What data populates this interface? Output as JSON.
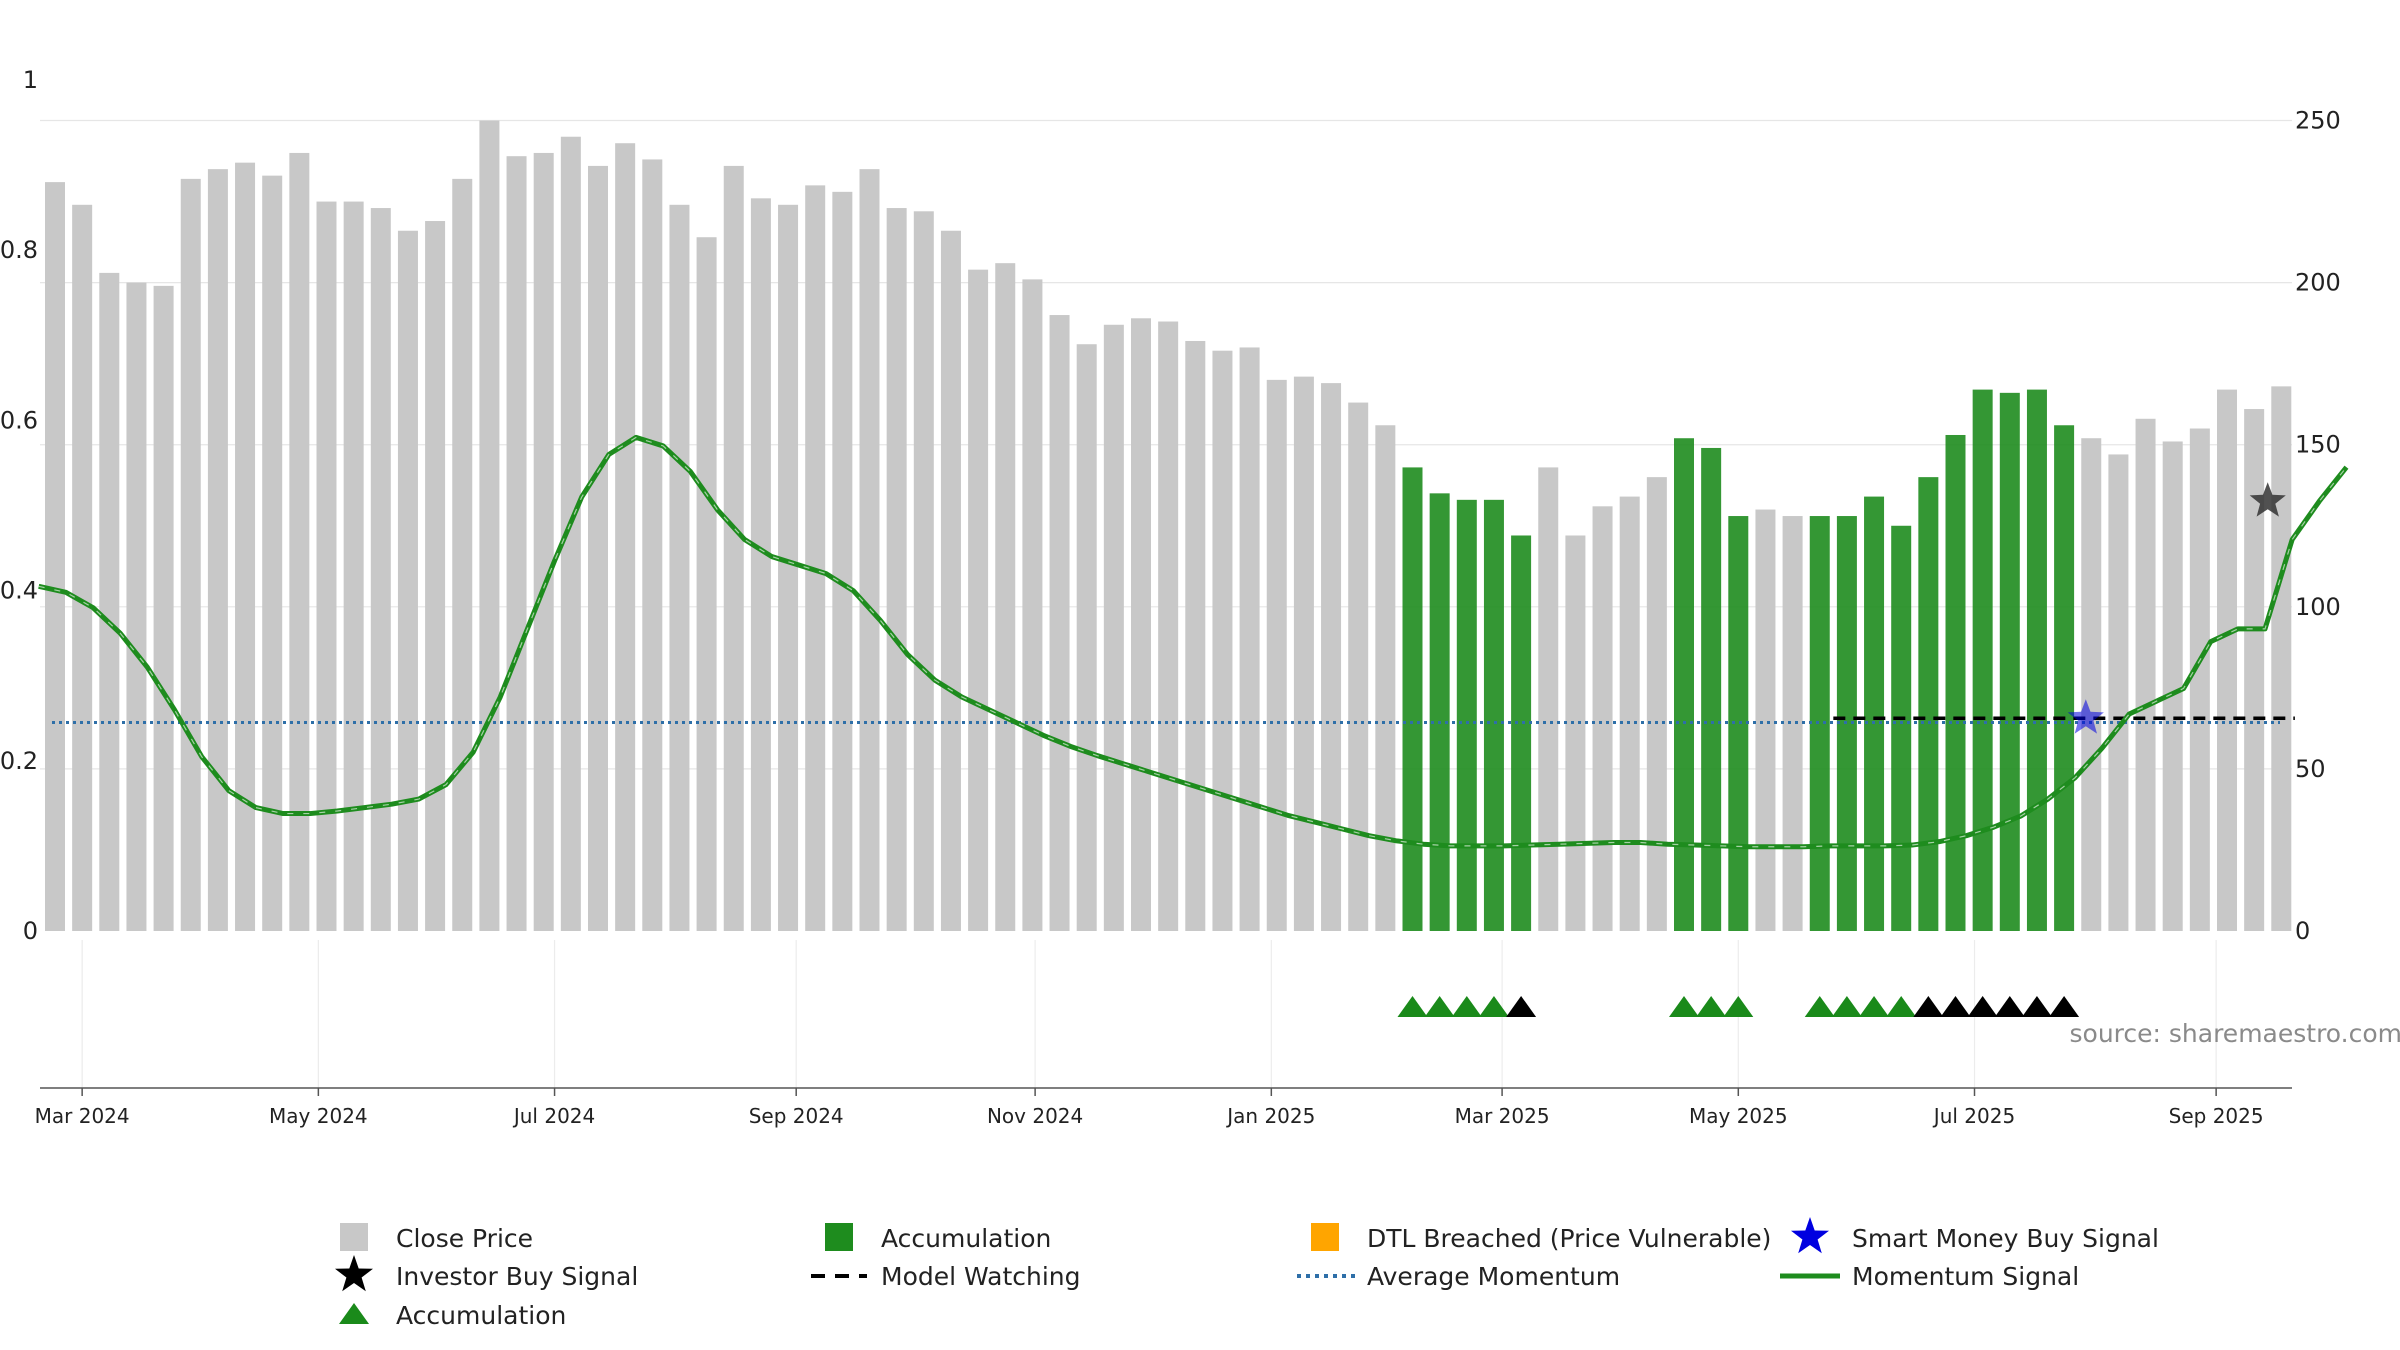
{
  "chart_data": {
    "type": "bar",
    "title": "",
    "source_label": "source: sharemaestro.com",
    "left_axis": {
      "ylim": [
        0,
        1
      ],
      "ticks": [
        0,
        0.2,
        0.4,
        0.6,
        0.8,
        1
      ],
      "tick_labels": [
        "0",
        "0.2",
        "0.4",
        "0.6",
        "0.8",
        "1"
      ]
    },
    "right_axis": {
      "ylim": [
        0,
        262.5
      ],
      "ticks": [
        0,
        50,
        100,
        150,
        200,
        250
      ],
      "tick_labels": [
        "0",
        "50",
        "100",
        "150",
        "200",
        "250"
      ]
    },
    "x_ticks": [
      {
        "label": "Mar 2024",
        "week": 1
      },
      {
        "label": "May 2024",
        "week": 9.7
      },
      {
        "label": "Jul 2024",
        "week": 18.4
      },
      {
        "label": "Sep 2024",
        "week": 27.3
      },
      {
        "label": "Nov 2024",
        "week": 36.1
      },
      {
        "label": "Jan 2025",
        "week": 44.8
      },
      {
        "label": "Mar 2025",
        "week": 53.3
      },
      {
        "label": "May 2025",
        "week": 62
      },
      {
        "label": "Jul 2025",
        "week": 70.7
      },
      {
        "label": "Sep 2025",
        "week": 79.6
      }
    ],
    "grid": true,
    "legend_position": "bottom",
    "colors": {
      "close": "#c8c8c8",
      "accum": "#1e8c1e",
      "dtl": "#ffa500",
      "smart": "#0000e0",
      "investor": "#000000",
      "triangle_green": "#1a8a1a",
      "triangle_black": "#000000",
      "avg": "#2e6fa8",
      "momentum": "#1e8c1e",
      "watch": "#000000"
    },
    "close_price": [
      231,
      224,
      203,
      200,
      199,
      232,
      235,
      237,
      233,
      240,
      225,
      225,
      223,
      216,
      219,
      232,
      250,
      239,
      240,
      245,
      236,
      243,
      238,
      224,
      214,
      236,
      226,
      224,
      230,
      228,
      235,
      223,
      222,
      216,
      204,
      206,
      201,
      190,
      181,
      187,
      189,
      188,
      182,
      179,
      180,
      170,
      171,
      169,
      163,
      156,
      143,
      135,
      133,
      133,
      122,
      143,
      122,
      131,
      134,
      140,
      152,
      149,
      128,
      130,
      128,
      128,
      128,
      134,
      125,
      140,
      153,
      167,
      166,
      167,
      156,
      152,
      147,
      158,
      151,
      155,
      167,
      161,
      168
    ],
    "accumulation_weeks": [
      50,
      51,
      52,
      53,
      54,
      60,
      61,
      62,
      65,
      66,
      67,
      68,
      69,
      70,
      71,
      72,
      73,
      74
    ],
    "momentum": [
      0.405,
      0.398,
      0.38,
      0.35,
      0.31,
      0.26,
      0.205,
      0.165,
      0.145,
      0.138,
      0.138,
      0.141,
      0.145,
      0.149,
      0.155,
      0.172,
      0.21,
      0.275,
      0.355,
      0.435,
      0.51,
      0.56,
      0.58,
      0.57,
      0.54,
      0.495,
      0.46,
      0.44,
      0.43,
      0.42,
      0.4,
      0.365,
      0.325,
      0.295,
      0.275,
      0.26,
      0.245,
      0.23,
      0.217,
      0.206,
      0.196,
      0.186,
      0.176,
      0.166,
      0.156,
      0.146,
      0.136,
      0.128,
      0.12,
      0.112,
      0.106,
      0.102,
      0.1,
      0.1,
      0.1,
      0.101,
      0.102,
      0.103,
      0.104,
      0.104,
      0.102,
      0.101,
      0.1,
      0.099,
      0.099,
      0.099,
      0.1,
      0.1,
      0.1,
      0.101,
      0.105,
      0.112,
      0.122,
      0.135,
      0.155,
      0.18,
      0.215,
      0.255,
      0.27,
      0.285,
      0.34,
      0.355,
      0.355,
      0.46,
      0.505,
      0.545
    ],
    "average_momentum": 0.245,
    "model_watching": {
      "start_week": 65.5,
      "end_week": 82.5,
      "level": 0.25
    },
    "smart_money_buy_signals": [
      {
        "week": 74.8,
        "value": 0.25
      }
    ],
    "investor_buy_signals": [
      {
        "week": 81.5,
        "value": 0.505
      }
    ],
    "accumulation_triangles_green": [
      50,
      51,
      52,
      53,
      60,
      61,
      62,
      65,
      66,
      67,
      68
    ],
    "accumulation_triangles_black": [
      54,
      69,
      70,
      71,
      72,
      73,
      74
    ],
    "legend": [
      {
        "label": "Close Price",
        "icon": "gray-square"
      },
      {
        "label": "Accumulation",
        "icon": "green-square"
      },
      {
        "label": "DTL Breached (Price Vulnerable)",
        "icon": "orange-square"
      },
      {
        "label": "Smart Money Buy Signal",
        "icon": "blue-star"
      },
      {
        "label": "Investor Buy Signal",
        "icon": "black-star"
      },
      {
        "label": "Model Watching",
        "icon": "dashed-line"
      },
      {
        "label": "Average Momentum",
        "icon": "dotted-line"
      },
      {
        "label": "Momentum Signal",
        "icon": "green-line"
      },
      {
        "label": "Accumulation",
        "icon": "green-triangle"
      }
    ]
  }
}
